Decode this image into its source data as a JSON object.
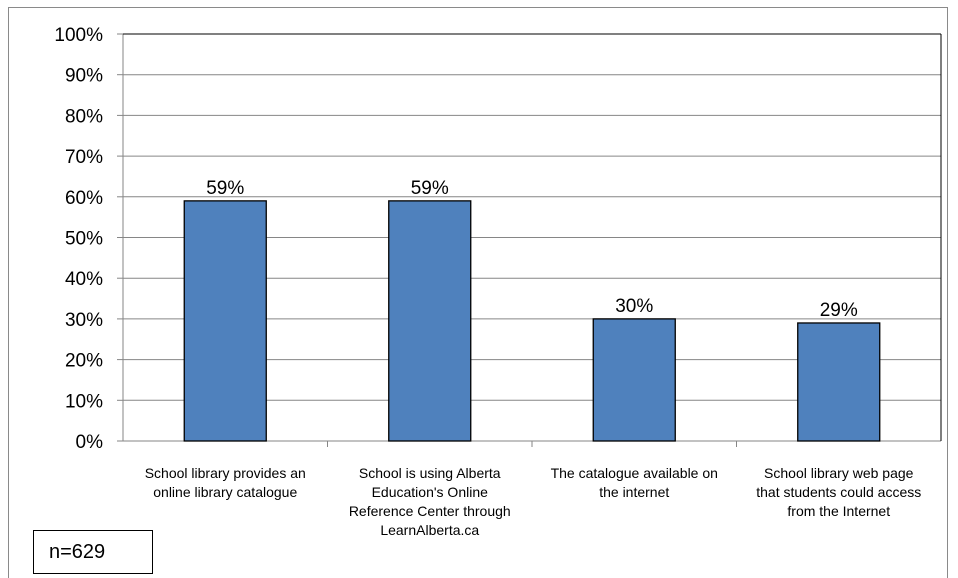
{
  "title": "",
  "chart_data": {
    "type": "bar",
    "categories": [
      "School library provides an online library catalogue",
      "School is using Alberta Education's Online Reference Center through LearnAlberta.ca",
      "The catalogue available on the internet",
      "School library web page that students could access from the Internet"
    ],
    "category_lines": [
      [
        "School library provides an",
        "online library catalogue"
      ],
      [
        "School is using Alberta",
        "Education's Online",
        "Reference Center through",
        "LearnAlberta.ca"
      ],
      [
        "The catalogue available on",
        "the internet"
      ],
      [
        "School library web page",
        "that students could access",
        "from the Internet"
      ]
    ],
    "values": [
      59,
      59,
      30,
      29
    ],
    "data_labels": [
      "59%",
      "59%",
      "30%",
      "29%"
    ],
    "ylim": [
      0,
      100
    ],
    "yticks": [
      "0%",
      "10%",
      "20%",
      "30%",
      "40%",
      "50%",
      "60%",
      "70%",
      "80%",
      "90%",
      "100%"
    ],
    "xlabel": "",
    "ylabel": "",
    "grid": true,
    "bar_color": "#4f81bd"
  },
  "annotation": "n=629"
}
